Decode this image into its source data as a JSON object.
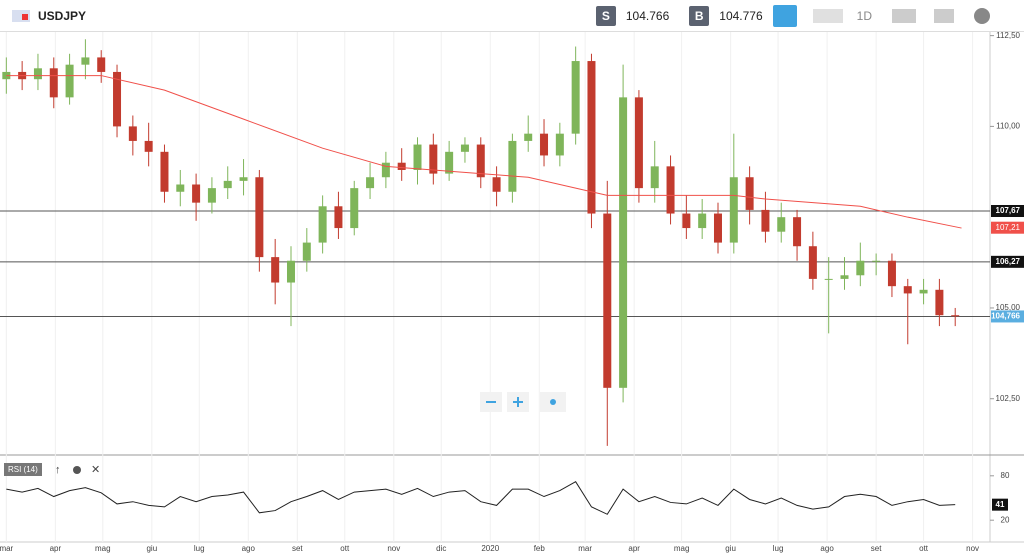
{
  "header": {
    "symbol": "USDJPY",
    "sell_label": "S",
    "sell_price": "104.766",
    "buy_label": "B",
    "buy_price": "104.776",
    "timeframe": "1D"
  },
  "chart_data": {
    "type": "candlestick",
    "x": [
      0,
      10,
      20,
      30,
      40,
      50,
      60,
      70,
      80,
      90,
      100,
      110,
      120,
      130,
      140,
      150,
      160,
      170,
      180,
      190,
      200,
      210,
      220,
      230,
      240,
      250,
      260,
      270,
      280,
      290,
      300,
      310,
      320,
      330,
      340,
      350,
      360,
      370,
      380,
      390,
      400,
      410,
      420,
      430,
      440,
      450,
      460,
      470,
      480,
      490,
      500,
      510,
      520,
      530,
      540,
      550,
      560,
      570,
      580,
      590,
      600
    ],
    "open": [
      111.3,
      111.5,
      111.3,
      111.6,
      110.8,
      111.7,
      111.9,
      111.5,
      110.0,
      109.6,
      109.3,
      108.2,
      108.4,
      107.9,
      108.3,
      108.5,
      108.6,
      106.4,
      105.7,
      106.3,
      106.8,
      107.8,
      107.2,
      108.3,
      108.6,
      109.0,
      108.8,
      109.5,
      108.7,
      109.3,
      109.5,
      108.6,
      108.2,
      109.6,
      109.8,
      109.2,
      109.8,
      111.8,
      107.6,
      102.8,
      110.8,
      108.3,
      108.9,
      107.6,
      107.2,
      107.6,
      106.8,
      108.6,
      107.7,
      107.1,
      107.5,
      106.7,
      105.8,
      105.8,
      105.9,
      106.3,
      106.3,
      105.6,
      105.4,
      105.5,
      104.8
    ],
    "high": [
      111.9,
      111.8,
      112.0,
      111.9,
      112.0,
      112.4,
      112.1,
      111.7,
      110.3,
      110.1,
      109.5,
      108.8,
      108.7,
      108.6,
      108.9,
      109.1,
      108.8,
      106.9,
      106.7,
      107.2,
      108.1,
      108.2,
      108.5,
      109.0,
      109.3,
      109.4,
      109.7,
      109.8,
      109.6,
      109.7,
      109.7,
      108.9,
      109.8,
      110.3,
      110.2,
      110.1,
      112.2,
      112.0,
      108.5,
      111.7,
      111.0,
      109.6,
      109.2,
      108.1,
      108.0,
      107.9,
      109.8,
      108.9,
      108.2,
      107.9,
      107.7,
      107.1,
      106.4,
      106.4,
      106.8,
      106.5,
      106.5,
      105.8,
      105.8,
      105.8,
      105.0
    ],
    "low": [
      110.9,
      111.0,
      111.0,
      110.5,
      110.6,
      111.3,
      111.2,
      109.7,
      109.2,
      108.9,
      107.9,
      107.8,
      107.4,
      107.6,
      108.0,
      108.1,
      106.0,
      105.1,
      104.5,
      106.0,
      106.5,
      106.9,
      107.0,
      108.0,
      108.3,
      108.5,
      108.4,
      108.4,
      108.5,
      109.0,
      108.3,
      107.8,
      107.9,
      109.3,
      108.9,
      108.9,
      109.5,
      107.2,
      101.2,
      102.4,
      107.9,
      107.9,
      107.3,
      106.9,
      106.9,
      106.5,
      106.5,
      107.3,
      106.8,
      106.8,
      106.3,
      105.5,
      104.3,
      105.5,
      105.6,
      105.9,
      105.3,
      104.0,
      105.1,
      104.5,
      104.5
    ],
    "close": [
      111.5,
      111.3,
      111.6,
      110.8,
      111.7,
      111.9,
      111.5,
      110.0,
      109.6,
      109.3,
      108.2,
      108.4,
      107.9,
      108.3,
      108.5,
      108.6,
      106.4,
      105.7,
      106.3,
      106.8,
      107.8,
      107.2,
      108.3,
      108.6,
      109.0,
      108.8,
      109.5,
      108.7,
      109.3,
      109.5,
      108.6,
      108.2,
      109.6,
      109.8,
      109.2,
      109.8,
      111.8,
      107.6,
      102.8,
      110.8,
      108.3,
      108.9,
      107.6,
      107.2,
      107.6,
      106.8,
      108.6,
      107.7,
      107.1,
      107.5,
      106.7,
      105.8,
      105.8,
      105.9,
      106.3,
      106.3,
      105.6,
      105.4,
      105.5,
      104.8,
      104.77
    ],
    "up_color": "#7fb55a",
    "down_color": "#c23b2e",
    "ma": {
      "color": "#f0504a",
      "x": [
        0,
        60,
        100,
        150,
        200,
        240,
        270,
        300,
        330,
        360,
        380,
        420,
        460,
        480,
        510,
        540,
        570,
        604
      ],
      "values": [
        111.4,
        111.4,
        111.0,
        110.2,
        109.4,
        108.9,
        108.8,
        108.7,
        108.6,
        108.3,
        108.1,
        108.1,
        108.1,
        108.0,
        107.9,
        107.8,
        107.5,
        107.2
      ],
      "label": "107,21",
      "label_value": 107.21
    },
    "price_lines": [
      {
        "value": 107.67,
        "label": "107,67"
      },
      {
        "value": 106.27,
        "label": "106,27"
      },
      {
        "value": 104.766,
        "label": "104,766"
      }
    ],
    "xlim": [
      -4,
      622
    ],
    "xticks": [
      {
        "value": 0,
        "label": "mar"
      },
      {
        "value": 31,
        "label": "apr"
      },
      {
        "value": 61,
        "label": "mag"
      },
      {
        "value": 92,
        "label": "giu"
      },
      {
        "value": 122,
        "label": "lug"
      },
      {
        "value": 153,
        "label": "ago"
      },
      {
        "value": 184,
        "label": "set"
      },
      {
        "value": 214,
        "label": "ott"
      },
      {
        "value": 245,
        "label": "nov"
      },
      {
        "value": 275,
        "label": "dic"
      },
      {
        "value": 306,
        "label": "2020"
      },
      {
        "value": 337,
        "label": "feb"
      },
      {
        "value": 366,
        "label": "mar"
      },
      {
        "value": 397,
        "label": "apr"
      },
      {
        "value": 427,
        "label": "mag"
      },
      {
        "value": 458,
        "label": "giu"
      },
      {
        "value": 488,
        "label": "lug"
      },
      {
        "value": 519,
        "label": "ago"
      },
      {
        "value": 550,
        "label": "set"
      },
      {
        "value": 580,
        "label": "ott"
      },
      {
        "value": 611,
        "label": "nov"
      }
    ],
    "ylim": [
      100.95,
      112.6
    ],
    "yticks": [
      {
        "value": 102.5,
        "label": "102,50"
      },
      {
        "value": 105,
        "label": "105,00"
      },
      {
        "value": 110,
        "label": "110,00"
      },
      {
        "value": 112.5,
        "label": "112,50"
      }
    ],
    "rsi": {
      "label": "RSI (14)",
      "ylim": [
        0,
        100
      ],
      "yticks": [
        20,
        80
      ],
      "values": [
        62,
        58,
        63,
        52,
        60,
        64,
        57,
        42,
        45,
        40,
        38,
        52,
        45,
        52,
        54,
        58,
        30,
        33,
        45,
        52,
        60,
        48,
        58,
        60,
        62,
        55,
        63,
        52,
        58,
        60,
        45,
        40,
        62,
        62,
        52,
        60,
        72,
        38,
        28,
        62,
        45,
        52,
        44,
        42,
        50,
        40,
        62,
        48,
        42,
        50,
        40,
        35,
        38,
        52,
        55,
        52,
        40,
        45,
        48,
        40,
        41
      ],
      "current": 41
    }
  }
}
